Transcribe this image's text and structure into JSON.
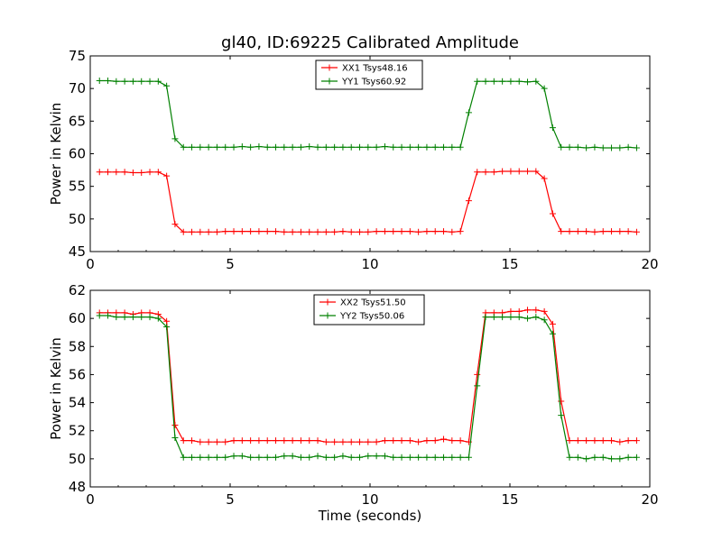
{
  "title": "gl40, ID:69225 Calibrated Amplitude",
  "chart_data": [
    {
      "type": "line",
      "title": "gl40, ID:69225 Calibrated Amplitude",
      "xlabel": "",
      "ylabel": "Power in Kelvin",
      "xlim": [
        0,
        20
      ],
      "ylim": [
        45,
        75
      ],
      "xticks": [
        "0",
        "5",
        "10",
        "15",
        "20"
      ],
      "yticks": [
        "45",
        "50",
        "55",
        "60",
        "65",
        "70",
        "75"
      ],
      "xtick_values": [
        0,
        5,
        10,
        15,
        20
      ],
      "ytick_values": [
        45,
        50,
        55,
        60,
        65,
        70,
        75
      ],
      "grid": false,
      "legend_position": "upper-center",
      "x": [
        0.33,
        0.63,
        0.93,
        1.23,
        1.53,
        1.83,
        2.13,
        2.43,
        2.73,
        3.03,
        3.33,
        3.63,
        3.93,
        4.23,
        4.53,
        4.83,
        5.13,
        5.43,
        5.73,
        6.03,
        6.33,
        6.63,
        6.93,
        7.23,
        7.53,
        7.83,
        8.13,
        8.43,
        8.73,
        9.03,
        9.33,
        9.63,
        9.93,
        10.23,
        10.53,
        10.83,
        11.13,
        11.43,
        11.73,
        12.03,
        12.33,
        12.63,
        12.93,
        13.23,
        13.53,
        13.83,
        14.13,
        14.43,
        14.73,
        15.03,
        15.33,
        15.63,
        15.93,
        16.23,
        16.53,
        16.83,
        17.13,
        17.43,
        17.73,
        18.03,
        18.33,
        18.63,
        18.93,
        19.23,
        19.53
      ],
      "series": [
        {
          "name": "XX1 Tsys48.16",
          "color": "#ff0000",
          "values": [
            57.2,
            57.2,
            57.2,
            57.2,
            57.1,
            57.1,
            57.2,
            57.2,
            56.6,
            49.2,
            48.0,
            48.0,
            48.0,
            48.0,
            48.0,
            48.1,
            48.1,
            48.1,
            48.1,
            48.1,
            48.1,
            48.1,
            48.0,
            48.0,
            48.0,
            48.0,
            48.0,
            48.0,
            48.0,
            48.1,
            48.0,
            48.0,
            48.0,
            48.1,
            48.1,
            48.1,
            48.1,
            48.1,
            48.0,
            48.1,
            48.1,
            48.1,
            48.0,
            48.1,
            52.8,
            57.2,
            57.2,
            57.2,
            57.3,
            57.3,
            57.3,
            57.3,
            57.3,
            56.2,
            50.8,
            48.1,
            48.1,
            48.1,
            48.1,
            48.0,
            48.1,
            48.1,
            48.1,
            48.1,
            48.0
          ]
        },
        {
          "name": "YY1 Tsys60.92",
          "color": "#008000",
          "values": [
            71.2,
            71.2,
            71.1,
            71.1,
            71.1,
            71.1,
            71.1,
            71.1,
            70.4,
            62.3,
            61.0,
            61.0,
            61.0,
            61.0,
            61.0,
            61.0,
            61.0,
            61.1,
            61.0,
            61.1,
            61.0,
            61.0,
            61.0,
            61.0,
            61.0,
            61.1,
            61.0,
            61.0,
            61.0,
            61.0,
            61.0,
            61.0,
            61.0,
            61.0,
            61.1,
            61.0,
            61.0,
            61.0,
            61.0,
            61.0,
            61.0,
            61.0,
            61.0,
            61.0,
            66.3,
            71.1,
            71.1,
            71.1,
            71.1,
            71.1,
            71.1,
            71.0,
            71.1,
            70.0,
            64.0,
            61.0,
            61.0,
            61.0,
            60.9,
            61.0,
            60.9,
            60.9,
            60.9,
            61.0,
            60.9
          ]
        }
      ]
    },
    {
      "type": "line",
      "title": "",
      "xlabel": "Time (seconds)",
      "ylabel": "Power in Kelvin",
      "xlim": [
        0,
        20
      ],
      "ylim": [
        48,
        62
      ],
      "xticks": [
        "0",
        "5",
        "10",
        "15",
        "20"
      ],
      "yticks": [
        "48",
        "50",
        "52",
        "54",
        "56",
        "58",
        "60",
        "62"
      ],
      "xtick_values": [
        0,
        5,
        10,
        15,
        20
      ],
      "ytick_values": [
        48,
        50,
        52,
        54,
        56,
        58,
        60,
        62
      ],
      "grid": false,
      "legend_position": "upper-center",
      "x": [
        0.33,
        0.63,
        0.93,
        1.23,
        1.53,
        1.83,
        2.13,
        2.43,
        2.73,
        3.03,
        3.33,
        3.63,
        3.93,
        4.23,
        4.53,
        4.83,
        5.13,
        5.43,
        5.73,
        6.03,
        6.33,
        6.63,
        6.93,
        7.23,
        7.53,
        7.83,
        8.13,
        8.43,
        8.73,
        9.03,
        9.33,
        9.63,
        9.93,
        10.23,
        10.53,
        10.83,
        11.13,
        11.43,
        11.73,
        12.03,
        12.33,
        12.63,
        12.93,
        13.23,
        13.53,
        13.83,
        14.13,
        14.43,
        14.73,
        15.03,
        15.33,
        15.63,
        15.93,
        16.23,
        16.53,
        16.83,
        17.13,
        17.43,
        17.73,
        18.03,
        18.33,
        18.63,
        18.93,
        19.23,
        19.53
      ],
      "series": [
        {
          "name": "XX2 Tsys51.50",
          "color": "#ff0000",
          "values": [
            60.4,
            60.4,
            60.4,
            60.4,
            60.3,
            60.4,
            60.4,
            60.3,
            59.8,
            52.4,
            51.3,
            51.3,
            51.2,
            51.2,
            51.2,
            51.2,
            51.3,
            51.3,
            51.3,
            51.3,
            51.3,
            51.3,
            51.3,
            51.3,
            51.3,
            51.3,
            51.3,
            51.2,
            51.2,
            51.2,
            51.2,
            51.2,
            51.2,
            51.2,
            51.3,
            51.3,
            51.3,
            51.3,
            51.2,
            51.3,
            51.3,
            51.4,
            51.3,
            51.3,
            51.2,
            56.0,
            60.4,
            60.4,
            60.4,
            60.5,
            60.5,
            60.6,
            60.6,
            60.5,
            59.6,
            54.1,
            51.3,
            51.3,
            51.3,
            51.3,
            51.3,
            51.3,
            51.2,
            51.3,
            51.3
          ]
        },
        {
          "name": "YY2 Tsys50.06",
          "color": "#008000",
          "values": [
            60.2,
            60.2,
            60.1,
            60.1,
            60.1,
            60.1,
            60.1,
            60.0,
            59.4,
            51.5,
            50.1,
            50.1,
            50.1,
            50.1,
            50.1,
            50.1,
            50.2,
            50.2,
            50.1,
            50.1,
            50.1,
            50.1,
            50.2,
            50.2,
            50.1,
            50.1,
            50.2,
            50.1,
            50.1,
            50.2,
            50.1,
            50.1,
            50.2,
            50.2,
            50.2,
            50.1,
            50.1,
            50.1,
            50.1,
            50.1,
            50.1,
            50.1,
            50.1,
            50.1,
            50.1,
            55.2,
            60.1,
            60.1,
            60.1,
            60.1,
            60.1,
            60.0,
            60.1,
            59.9,
            58.9,
            53.1,
            50.1,
            50.1,
            50.0,
            50.1,
            50.1,
            50.0,
            50.0,
            50.1,
            50.1
          ]
        }
      ]
    }
  ]
}
